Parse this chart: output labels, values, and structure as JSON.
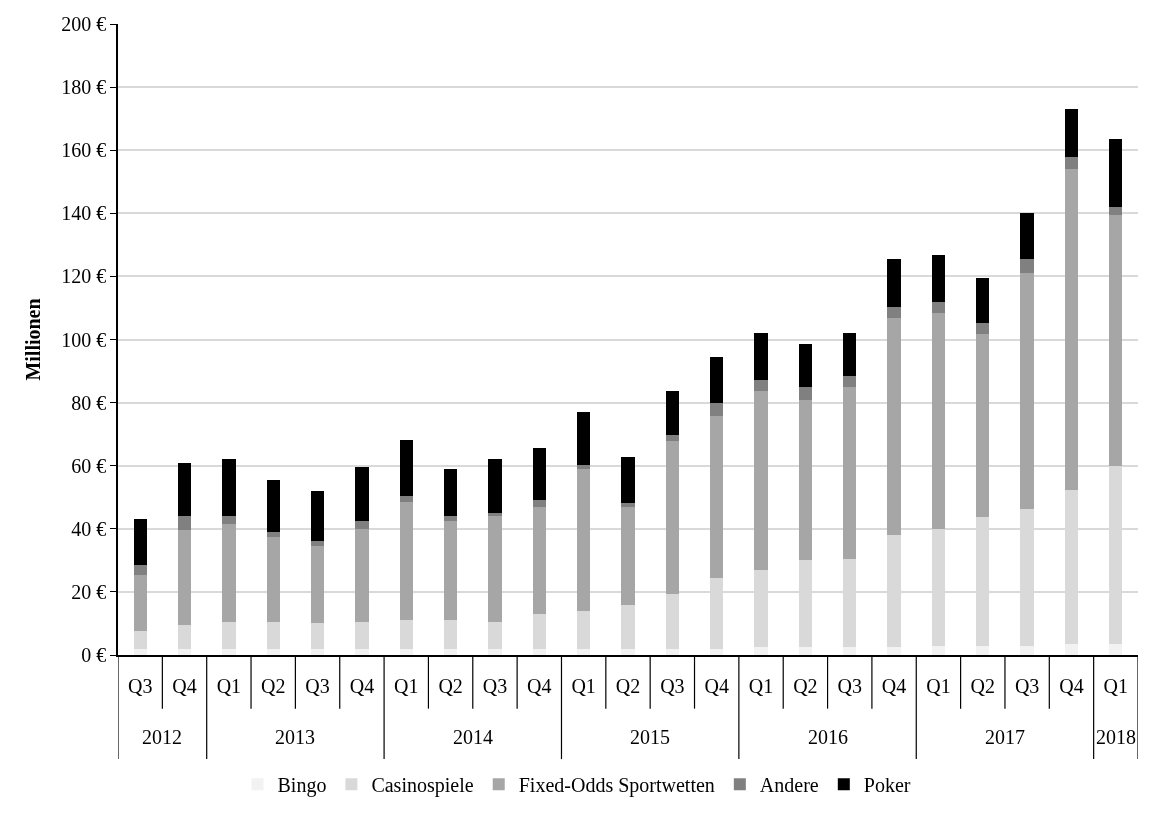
{
  "chart_data": {
    "type": "bar",
    "stacked": true,
    "ylabel": "Millionen",
    "categories": [
      "Q3",
      "Q4",
      "Q1",
      "Q2",
      "Q3",
      "Q4",
      "Q1",
      "Q2",
      "Q3",
      "Q4",
      "Q1",
      "Q2",
      "Q3",
      "Q4",
      "Q1",
      "Q2",
      "Q3",
      "Q4",
      "Q1",
      "Q2",
      "Q3",
      "Q4",
      "Q1"
    ],
    "annotations": [
      "2012",
      "2013",
      "2014",
      "2015",
      "2016",
      "2017",
      "2018"
    ],
    "series": [
      {
        "name": "Bingo",
        "color": "#f2f2f2",
        "values": [
          2,
          2,
          2,
          2,
          2,
          2,
          2,
          2,
          2,
          2,
          2,
          2,
          2,
          2,
          2.5,
          2.5,
          2.5,
          2.5,
          3,
          3,
          3,
          3.5,
          3.5
        ]
      },
      {
        "name": "Casinospiele",
        "color": "#d9d9d9",
        "values": [
          5.5,
          7.5,
          8.5,
          8.5,
          8,
          8.5,
          9,
          9,
          8.5,
          11,
          11.9,
          14,
          17.4,
          22.4,
          24.4,
          27.5,
          27.9,
          35.6,
          36.8,
          40.8,
          43.4,
          48.9,
          56.3
        ]
      },
      {
        "name": "Fixed-Odds Sportwetten",
        "color": "#a6a6a6",
        "values": [
          18,
          30,
          31,
          27,
          24.5,
          29.5,
          37.5,
          31.5,
          33.5,
          34,
          44.9,
          30.8,
          48.5,
          51.2,
          56.9,
          50.9,
          54.7,
          68.7,
          68.6,
          58.1,
          74.6,
          101.7,
          79.8
        ]
      },
      {
        "name": "Andere",
        "color": "#808080",
        "values": [
          3,
          4.5,
          2.5,
          1.5,
          1.5,
          2.5,
          2,
          1.5,
          1,
          2,
          1.4,
          1.4,
          1.7,
          4.4,
          3.5,
          4,
          3.3,
          3.4,
          3.4,
          3.4,
          4.5,
          3.7,
          2.5
        ]
      },
      {
        "name": "Poker",
        "color": "#000000",
        "values": [
          14.5,
          17,
          18,
          16.5,
          16,
          17,
          17.5,
          15,
          17,
          16.5,
          16.7,
          14.5,
          14.2,
          14.5,
          14.8,
          13.7,
          13.7,
          15.3,
          15,
          14.2,
          14.7,
          15.4,
          21.4
        ]
      }
    ],
    "ylim": [
      0,
      200
    ],
    "yticks": [
      {
        "value": 0,
        "label": "0 €"
      },
      {
        "value": 20,
        "label": "20 €"
      },
      {
        "value": 40,
        "label": "40 €"
      },
      {
        "value": 60,
        "label": "60 €"
      },
      {
        "value": 80,
        "label": "80 €"
      },
      {
        "value": 100,
        "label": "100 €"
      },
      {
        "value": 120,
        "label": "120 €"
      },
      {
        "value": 140,
        "label": "140 €"
      },
      {
        "value": 160,
        "label": "160 €"
      },
      {
        "value": 180,
        "label": "180 €"
      },
      {
        "value": 200,
        "label": "200 €"
      }
    ],
    "grid": "y",
    "legend": "bottom"
  }
}
